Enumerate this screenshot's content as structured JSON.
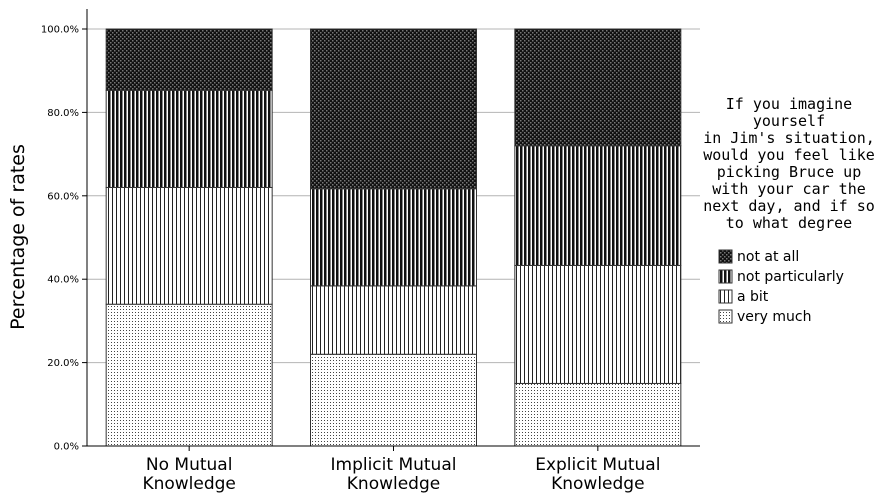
{
  "chart_data": {
    "type": "bar",
    "stacked": true,
    "ylabel": "Percentage of rates",
    "xlabel": "",
    "ylim": [
      0,
      100
    ],
    "yticks": [
      "0.0%",
      "20.0%",
      "40.0%",
      "60.0%",
      "80.0%",
      "100.0%"
    ],
    "grid": true,
    "categories": [
      [
        "No Mutual",
        "Knowledge"
      ],
      [
        "Implicit Mutual",
        "Knowledge"
      ],
      [
        "Explicit Mutual",
        "Knowledge"
      ]
    ],
    "series": [
      {
        "name": "very much",
        "pattern": "dots",
        "values": [
          34,
          22,
          15
        ]
      },
      {
        "name": "a bit",
        "pattern": "vlines-thin",
        "values": [
          28,
          16.4,
          28.3
        ]
      },
      {
        "name": "not particularly",
        "pattern": "vlines-thick",
        "values": [
          23.3,
          23.3,
          28.7
        ]
      },
      {
        "name": "not at all",
        "pattern": "checker",
        "values": [
          14.7,
          38.3,
          28
        ]
      }
    ],
    "legend": {
      "position": "right",
      "title": [
        "If you imagine",
        "yourself",
        "in Jim's situation,",
        "would you feel like",
        "picking Bruce up",
        "with your car the",
        "next day, and if so",
        "to what degree"
      ],
      "order": [
        "not at all",
        "not particularly",
        "a bit",
        "very much"
      ]
    }
  }
}
